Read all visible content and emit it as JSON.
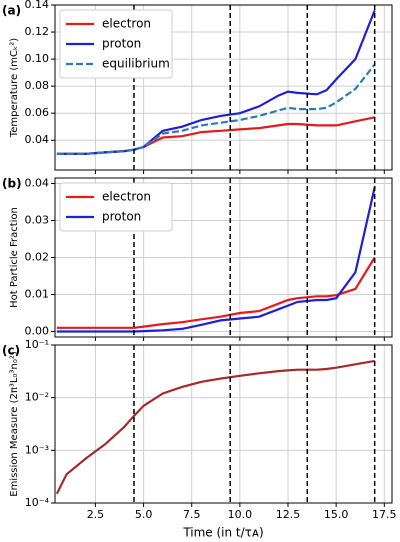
{
  "chart_data": [
    {
      "type": "line",
      "panel_label": "(a)",
      "ylabel": "Temperature (mCₖ²)",
      "x": [
        0.5,
        1,
        2,
        3,
        4,
        4.5,
        5,
        6,
        7,
        8,
        9,
        10,
        11,
        12,
        12.5,
        13,
        14,
        14.5,
        15,
        16,
        17
      ],
      "series": [
        {
          "name": "electron",
          "color": "#e41a1c",
          "dash": false,
          "values": [
            0.03,
            0.03,
            0.03,
            0.031,
            0.032,
            0.033,
            0.035,
            0.042,
            0.043,
            0.046,
            0.047,
            0.048,
            0.049,
            0.051,
            0.052,
            0.052,
            0.051,
            0.051,
            0.051,
            0.054,
            0.057
          ]
        },
        {
          "name": "proton",
          "color": "#1f1fd6",
          "dash": false,
          "values": [
            0.03,
            0.03,
            0.03,
            0.031,
            0.032,
            0.033,
            0.035,
            0.047,
            0.05,
            0.055,
            0.058,
            0.06,
            0.065,
            0.073,
            0.076,
            0.075,
            0.074,
            0.077,
            0.085,
            0.1,
            0.136
          ]
        },
        {
          "name": "equilibrium",
          "color": "#2b7bba",
          "dash": true,
          "values": [
            0.03,
            0.03,
            0.03,
            0.031,
            0.032,
            0.033,
            0.035,
            0.045,
            0.047,
            0.051,
            0.053,
            0.055,
            0.058,
            0.062,
            0.064,
            0.063,
            0.063,
            0.064,
            0.068,
            0.078,
            0.096
          ]
        }
      ],
      "xlim": [
        0.4,
        17.9
      ],
      "xticks": [
        2.5,
        {
          "value": 5,
          "label": "5.0"
        },
        7.5,
        {
          "value": 10,
          "label": "10.0"
        },
        12.5,
        {
          "value": 15,
          "label": "15.0"
        },
        17.5
      ],
      "ylim": [
        0.018,
        0.14
      ],
      "yticks": [
        0.04,
        0.06,
        0.08,
        {
          "value": 0.1,
          "label": "0.10"
        },
        0.12,
        0.14
      ],
      "log_y": false,
      "grid": true,
      "legend": "upper-left",
      "vlines": [
        4.5,
        9.5,
        13.5,
        17
      ]
    },
    {
      "type": "line",
      "panel_label": "(b)",
      "ylabel": "Hot Particle Fraction",
      "x": [
        0.5,
        1,
        2,
        3,
        4,
        4.5,
        5,
        6,
        7,
        8,
        9,
        10,
        11,
        12,
        12.5,
        13,
        14,
        14.5,
        15,
        16,
        17
      ],
      "series": [
        {
          "name": "electron",
          "color": "#e41a1c",
          "dash": false,
          "values": [
            0.001,
            0.001,
            0.001,
            0.001,
            0.001,
            0.001,
            0.0013,
            0.002,
            0.0025,
            0.0033,
            0.004,
            0.005,
            0.0055,
            0.0075,
            0.0085,
            0.009,
            0.0095,
            0.0095,
            0.0098,
            0.0115,
            0.02
          ]
        },
        {
          "name": "proton",
          "color": "#1f1fd6",
          "dash": false,
          "values": [
            0,
            0,
            0,
            0,
            0,
            0,
            0.0001,
            0.0003,
            0.0007,
            0.0018,
            0.003,
            0.0035,
            0.004,
            0.006,
            0.007,
            0.008,
            0.0085,
            0.0085,
            0.009,
            0.016,
            0.039
          ]
        }
      ],
      "xlim": [
        0.4,
        17.9
      ],
      "xticks": [
        2.5,
        {
          "value": 5,
          "label": "5.0"
        },
        7.5,
        {
          "value": 10,
          "label": "10.0"
        },
        12.5,
        {
          "value": 15,
          "label": "15.0"
        },
        17.5
      ],
      "ylim": [
        -0.0015,
        0.0415
      ],
      "yticks": [
        {
          "value": 0,
          "label": "0.00"
        },
        0.01,
        0.02,
        0.03,
        0.04
      ],
      "log_y": false,
      "grid": true,
      "legend": "upper-left",
      "vlines": [
        4.5,
        9.5,
        13.5,
        17
      ]
    },
    {
      "type": "line",
      "panel_label": "(c)",
      "ylabel": "Emission Measure (2π³L₀³n₀²)",
      "xlabel": "Time (in t/τᴀ)",
      "x": [
        0.5,
        1,
        2,
        3,
        4,
        4.5,
        5,
        6,
        7,
        8,
        9,
        10,
        11,
        12,
        12.5,
        13,
        14,
        14.5,
        15,
        16,
        17
      ],
      "series": [
        {
          "color": "#a52a2a",
          "dash": false,
          "values": [
            0.00015,
            0.00035,
            0.0007,
            0.0013,
            0.0028,
            0.0045,
            0.007,
            0.012,
            0.016,
            0.02,
            0.023,
            0.026,
            0.029,
            0.032,
            0.033,
            0.034,
            0.034,
            0.035,
            0.037,
            0.043,
            0.05
          ]
        }
      ],
      "xlim": [
        0.4,
        17.9
      ],
      "xticks": [
        2.5,
        {
          "value": 5,
          "label": "5.0"
        },
        7.5,
        {
          "value": 10,
          "label": "10.0"
        },
        12.5,
        {
          "value": 15,
          "label": "15.0"
        },
        17.5
      ],
      "ylim": [
        0.0001,
        0.1
      ],
      "yticks": [
        {
          "value": 0.0001,
          "label": "10⁻⁴"
        },
        {
          "value": 0.001,
          "label": "10⁻³"
        },
        {
          "value": 0.01,
          "label": "10⁻²"
        },
        {
          "value": 0.1,
          "label": "10⁻¹"
        }
      ],
      "log_y": true,
      "grid": true,
      "vlines": [
        4.5,
        9.5,
        13.5,
        17
      ]
    }
  ]
}
